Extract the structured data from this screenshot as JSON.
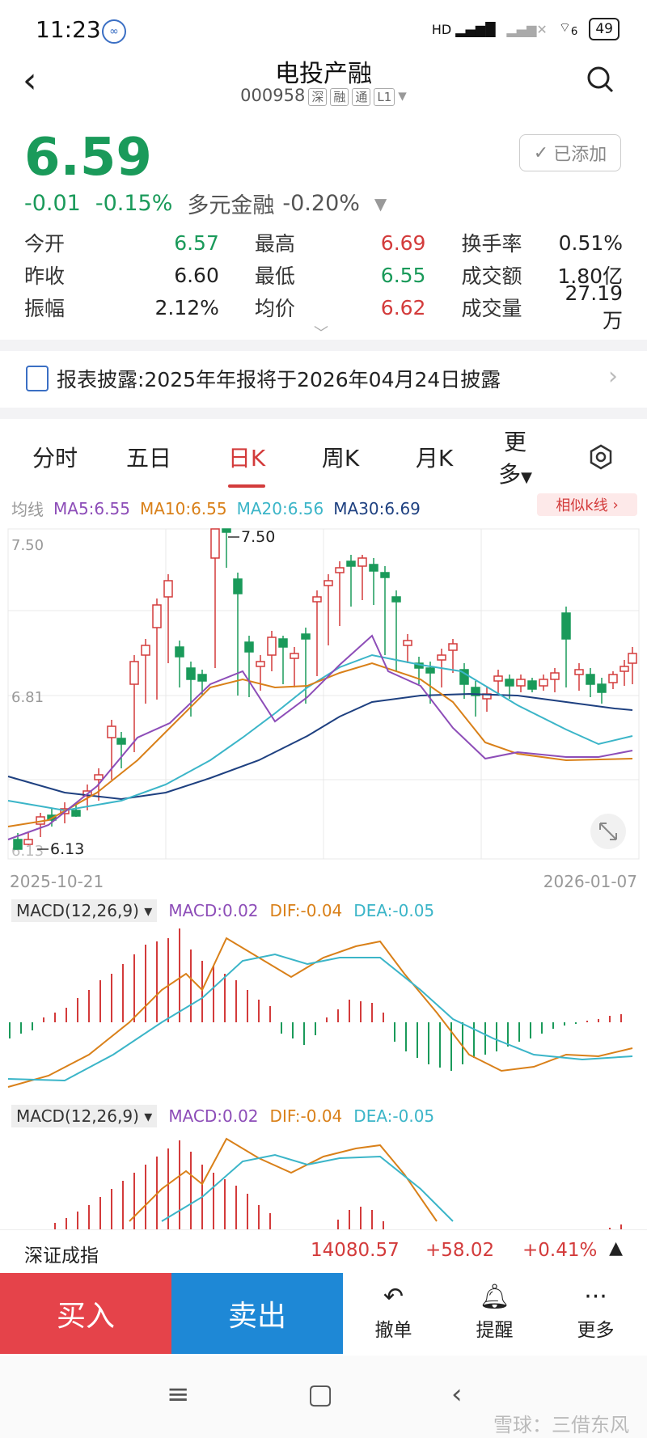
{
  "status_bar": {
    "time": "11:23",
    "network": "HD",
    "sim2": "6",
    "battery": "49"
  },
  "header": {
    "title": "电投产融",
    "code": "000958",
    "tags": [
      "深",
      "融",
      "通",
      "L1"
    ]
  },
  "quote": {
    "price": "6.59",
    "change": "-0.01",
    "change_pct": "-0.15%",
    "sector": "多元金融",
    "sector_pct": "-0.20%",
    "added_label": "已添加"
  },
  "stats": [
    [
      {
        "label": "今开",
        "value": "6.57",
        "color": "green"
      },
      {
        "label": "最高",
        "value": "6.69",
        "color": "red"
      },
      {
        "label": "换手率",
        "value": "0.51%",
        "color": "plain"
      }
    ],
    [
      {
        "label": "昨收",
        "value": "6.60",
        "color": "plain"
      },
      {
        "label": "最低",
        "value": "6.55",
        "color": "green"
      },
      {
        "label": "成交额",
        "value": "1.80亿",
        "color": "plain"
      }
    ],
    [
      {
        "label": "振幅",
        "value": "2.12%",
        "color": "plain"
      },
      {
        "label": "均价",
        "value": "6.62",
        "color": "red"
      },
      {
        "label": "成交量",
        "value": "27.19万",
        "color": "plain"
      }
    ]
  ],
  "notice": {
    "text": "报表披露:2025年年报将于2026年04月24日披露"
  },
  "tabs": [
    "分时",
    "五日",
    "日K",
    "周K",
    "月K",
    "更多"
  ],
  "active_tab": "日K",
  "ma_legend": {
    "label": "均线",
    "ma5": "MA5:6.55",
    "ma10": "MA10:6.55",
    "ma20": "MA20:6.56",
    "ma30": "MA30:6.69",
    "similar": "相似k线"
  },
  "kchart": {
    "y_labels": [
      "7.50",
      "6.81",
      "6.13"
    ],
    "max_marker": "7.50",
    "min_marker": "6.13",
    "start_date": "2025-10-21",
    "end_date": "2026-01-07"
  },
  "macd_panels": [
    {
      "selector": "MACD(12,26,9)",
      "macd": "MACD:0.02",
      "dif": "DIF:-0.04",
      "dea": "DEA:-0.05"
    },
    {
      "selector": "MACD(12,26,9)",
      "macd": "MACD:0.02",
      "dif": "DIF:-0.04",
      "dea": "DEA:-0.05"
    }
  ],
  "index_bar": {
    "name": "深证成指",
    "value": "14080.57",
    "change": "+58.02",
    "change_pct": "+0.41%"
  },
  "actions": {
    "buy": "买入",
    "sell": "卖出",
    "cancel": "撤单",
    "alert": "提醒",
    "more": "更多"
  },
  "watermark": "雪球：三借东风",
  "colors": {
    "up": "#d33b3b",
    "down": "#1a9a5a",
    "ma5": "#8d4db8",
    "ma10": "#d98019",
    "ma20": "#3bb5c8",
    "ma30": "#1e4080",
    "buy": "#e5434a",
    "sell": "#1e88d6"
  }
}
